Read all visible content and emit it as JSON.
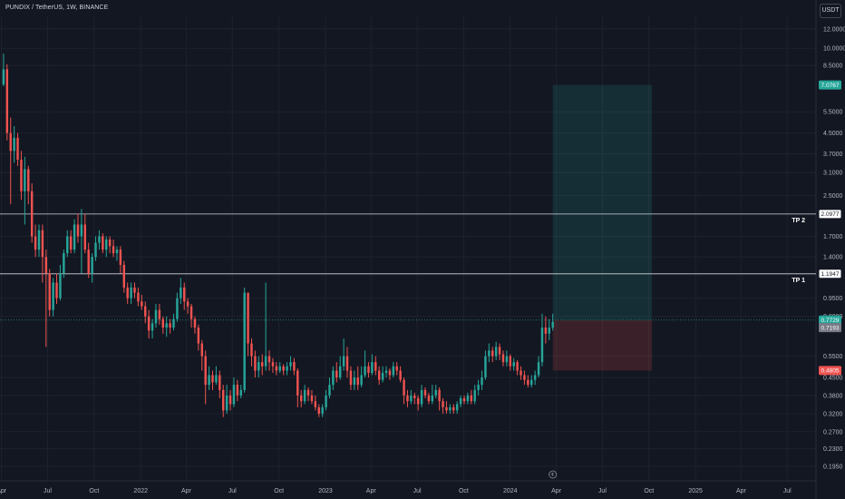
{
  "header": {
    "symbol_line": "PUNDIX / TetherUS, 1W, BINANCE",
    "currency": "USDT"
  },
  "chart_data": {
    "type": "candlestick",
    "y_scale": "log",
    "ylim": [
      0.17,
      13.5
    ],
    "y_ticks": [
      "12.0000",
      "10.0000",
      "8.5000",
      "7.0767",
      "5.5000",
      "4.5000",
      "3.7000",
      "3.1000",
      "2.5000",
      "2.0977",
      "1.7000",
      "1.4000",
      "1.1947",
      "0.9500",
      "0.8000",
      "0.7729",
      "0.7193",
      "0.5500",
      "0.4805",
      "0.4500",
      "0.3800",
      "0.3200",
      "0.2700",
      "0.2300",
      "0.1950"
    ],
    "x_ticks": [
      "Apr",
      "Jul",
      "Oct",
      "2022",
      "Apr",
      "Jul",
      "Oct",
      "2023",
      "Apr",
      "Jul",
      "Oct",
      "2024",
      "Apr",
      "Jul",
      "Oct",
      "2025",
      "Apr",
      "Jul"
    ],
    "x_range": [
      "2021-03-29",
      "2025-08-18"
    ],
    "price_tags": [
      {
        "label": "7.0767",
        "value": 7.0767,
        "color": "#26a69a"
      },
      {
        "label": "2.0977",
        "value": 2.0977,
        "color": "#ffffff"
      },
      {
        "label": "1.1947",
        "value": 1.1947,
        "color": "#ffffff"
      },
      {
        "label": "0.7729",
        "value": 0.7729,
        "color": "#26a69a"
      },
      {
        "label": "0.7193",
        "value": 0.7193,
        "color": "#787b86"
      },
      {
        "label": "0.4805",
        "value": 0.4805,
        "color": "#ef5350"
      }
    ],
    "horizontal_lines": [
      {
        "label": "TP 2",
        "value": 2.0977
      },
      {
        "label": "TP 1",
        "value": 1.1947
      }
    ],
    "position_box": {
      "start": "2024-03-25",
      "end": "2024-10-07",
      "entry": 0.7729,
      "target": 7.0767,
      "stop": 0.4805
    },
    "candles": [
      [
        "2021-04-05",
        7.1,
        8.2,
        9.5,
        7.0
      ],
      [
        "2021-04-12",
        8.2,
        4.5,
        8.6,
        4.2
      ],
      [
        "2021-04-19",
        4.5,
        3.8,
        5.2,
        2.3
      ],
      [
        "2021-04-26",
        3.8,
        4.3,
        4.8,
        3.4
      ],
      [
        "2021-05-03",
        4.3,
        3.5,
        4.5,
        3.3
      ],
      [
        "2021-05-10",
        3.5,
        2.6,
        3.8,
        2.4
      ],
      [
        "2021-05-17",
        2.6,
        3.2,
        3.6,
        1.9
      ],
      [
        "2021-05-24",
        3.2,
        2.6,
        3.3,
        2.3
      ],
      [
        "2021-05-31",
        2.6,
        1.7,
        2.8,
        1.6
      ],
      [
        "2021-06-07",
        1.7,
        1.5,
        1.9,
        1.4
      ],
      [
        "2021-06-14",
        1.5,
        1.8,
        1.9,
        1.4
      ],
      [
        "2021-06-21",
        1.8,
        1.4,
        1.9,
        1.1
      ],
      [
        "2021-06-28",
        1.4,
        1.2,
        1.5,
        0.6
      ],
      [
        "2021-07-05",
        1.2,
        0.85,
        1.25,
        0.8
      ],
      [
        "2021-07-12",
        0.85,
        1.1,
        1.15,
        0.8
      ],
      [
        "2021-07-19",
        1.1,
        0.95,
        1.2,
        0.9
      ],
      [
        "2021-07-26",
        0.95,
        1.2,
        1.3,
        0.93
      ],
      [
        "2021-08-02",
        1.2,
        1.45,
        1.5,
        1.15
      ],
      [
        "2021-08-09",
        1.45,
        1.7,
        1.8,
        1.4
      ],
      [
        "2021-08-16",
        1.7,
        1.5,
        1.8,
        1.45
      ],
      [
        "2021-08-23",
        1.5,
        1.9,
        2.0,
        1.45
      ],
      [
        "2021-08-30",
        1.9,
        1.7,
        2.1,
        1.6
      ],
      [
        "2021-09-06",
        1.7,
        1.9,
        2.2,
        1.2
      ],
      [
        "2021-09-13",
        1.9,
        1.5,
        2.1,
        1.45
      ],
      [
        "2021-09-20",
        1.5,
        1.2,
        1.6,
        1.15
      ],
      [
        "2021-09-27",
        1.2,
        1.4,
        1.45,
        1.1
      ],
      [
        "2021-10-04",
        1.4,
        1.6,
        1.7,
        1.35
      ],
      [
        "2021-10-11",
        1.6,
        1.7,
        1.8,
        1.5
      ],
      [
        "2021-10-18",
        1.7,
        1.5,
        1.75,
        1.45
      ],
      [
        "2021-10-25",
        1.5,
        1.65,
        1.7,
        1.4
      ],
      [
        "2021-11-01",
        1.65,
        1.55,
        1.7,
        1.45
      ],
      [
        "2021-11-08",
        1.55,
        1.45,
        1.65,
        1.4
      ],
      [
        "2021-11-15",
        1.45,
        1.5,
        1.55,
        1.35
      ],
      [
        "2021-11-22",
        1.5,
        1.3,
        1.55,
        1.2
      ],
      [
        "2021-11-29",
        1.3,
        1.05,
        1.35,
        1.0
      ],
      [
        "2021-12-06",
        1.05,
        0.95,
        1.1,
        0.9
      ],
      [
        "2021-12-13",
        0.95,
        1.05,
        1.1,
        0.9
      ],
      [
        "2021-12-20",
        1.05,
        1.0,
        1.1,
        0.95
      ],
      [
        "2021-12-27",
        1.0,
        0.92,
        1.05,
        0.88
      ],
      [
        "2022-01-03",
        0.92,
        0.88,
        0.98,
        0.85
      ],
      [
        "2022-01-10",
        0.88,
        0.8,
        0.92,
        0.75
      ],
      [
        "2022-01-17",
        0.8,
        0.7,
        0.85,
        0.65
      ],
      [
        "2022-01-24",
        0.7,
        0.75,
        0.78,
        0.65
      ],
      [
        "2022-01-31",
        0.75,
        0.85,
        0.9,
        0.72
      ],
      [
        "2022-02-07",
        0.85,
        0.78,
        0.9,
        0.74
      ],
      [
        "2022-02-14",
        0.78,
        0.72,
        0.8,
        0.68
      ],
      [
        "2022-02-21",
        0.72,
        0.75,
        0.8,
        0.66
      ],
      [
        "2022-02-28",
        0.75,
        0.72,
        0.78,
        0.68
      ],
      [
        "2022-03-07",
        0.72,
        0.78,
        0.82,
        0.7
      ],
      [
        "2022-03-14",
        0.78,
        0.95,
        1.0,
        0.76
      ],
      [
        "2022-03-21",
        0.95,
        1.05,
        1.15,
        0.9
      ],
      [
        "2022-03-28",
        1.05,
        0.92,
        1.1,
        0.85
      ],
      [
        "2022-04-04",
        0.92,
        0.88,
        0.95,
        0.82
      ],
      [
        "2022-04-11",
        0.88,
        0.78,
        0.9,
        0.72
      ],
      [
        "2022-04-18",
        0.78,
        0.72,
        0.8,
        0.68
      ],
      [
        "2022-04-25",
        0.72,
        0.62,
        0.74,
        0.58
      ],
      [
        "2022-05-02",
        0.62,
        0.55,
        0.64,
        0.48
      ],
      [
        "2022-05-09",
        0.55,
        0.42,
        0.58,
        0.35
      ],
      [
        "2022-05-16",
        0.42,
        0.46,
        0.5,
        0.4
      ],
      [
        "2022-05-23",
        0.46,
        0.43,
        0.48,
        0.4
      ],
      [
        "2022-05-30",
        0.43,
        0.46,
        0.5,
        0.42
      ],
      [
        "2022-06-06",
        0.46,
        0.4,
        0.48,
        0.37
      ],
      [
        "2022-06-13",
        0.4,
        0.33,
        0.42,
        0.31
      ],
      [
        "2022-06-20",
        0.33,
        0.38,
        0.42,
        0.32
      ],
      [
        "2022-06-27",
        0.38,
        0.35,
        0.4,
        0.33
      ],
      [
        "2022-07-04",
        0.35,
        0.42,
        0.45,
        0.34
      ],
      [
        "2022-07-11",
        0.42,
        0.38,
        0.44,
        0.36
      ],
      [
        "2022-07-18",
        0.38,
        0.4,
        0.42,
        0.37
      ],
      [
        "2022-07-25",
        0.4,
        1.0,
        1.05,
        0.39
      ],
      [
        "2022-08-01",
        1.0,
        0.62,
        1.0,
        0.55
      ],
      [
        "2022-08-08",
        0.62,
        0.55,
        0.65,
        0.5
      ],
      [
        "2022-08-15",
        0.55,
        0.48,
        0.58,
        0.45
      ],
      [
        "2022-08-22",
        0.48,
        0.52,
        0.55,
        0.45
      ],
      [
        "2022-08-29",
        0.52,
        0.5,
        0.56,
        0.46
      ],
      [
        "2022-09-05",
        0.5,
        0.55,
        1.1,
        0.48
      ],
      [
        "2022-09-12",
        0.55,
        0.52,
        0.58,
        0.48
      ],
      [
        "2022-09-19",
        0.52,
        0.5,
        0.54,
        0.47
      ],
      [
        "2022-09-26",
        0.5,
        0.48,
        0.52,
        0.46
      ],
      [
        "2022-10-03",
        0.48,
        0.5,
        0.52,
        0.47
      ],
      [
        "2022-10-10",
        0.5,
        0.48,
        0.51,
        0.46
      ],
      [
        "2022-10-17",
        0.48,
        0.5,
        0.52,
        0.46
      ],
      [
        "2022-10-24",
        0.5,
        0.52,
        0.55,
        0.48
      ],
      [
        "2022-10-31",
        0.52,
        0.48,
        0.54,
        0.46
      ],
      [
        "2022-11-07",
        0.48,
        0.38,
        0.49,
        0.34
      ],
      [
        "2022-11-14",
        0.38,
        0.36,
        0.4,
        0.34
      ],
      [
        "2022-11-21",
        0.36,
        0.4,
        0.42,
        0.35
      ],
      [
        "2022-11-28",
        0.4,
        0.38,
        0.41,
        0.36
      ],
      [
        "2022-12-05",
        0.38,
        0.36,
        0.4,
        0.35
      ],
      [
        "2022-12-12",
        0.36,
        0.34,
        0.38,
        0.33
      ],
      [
        "2022-12-19",
        0.34,
        0.32,
        0.35,
        0.31
      ],
      [
        "2022-12-26",
        0.32,
        0.34,
        0.35,
        0.31
      ],
      [
        "2023-01-02",
        0.34,
        0.38,
        0.4,
        0.33
      ],
      [
        "2023-01-09",
        0.38,
        0.42,
        0.45,
        0.37
      ],
      [
        "2023-01-16",
        0.42,
        0.48,
        0.5,
        0.4
      ],
      [
        "2023-01-23",
        0.48,
        0.45,
        0.52,
        0.43
      ],
      [
        "2023-01-30",
        0.45,
        0.5,
        0.55,
        0.44
      ],
      [
        "2023-02-06",
        0.5,
        0.55,
        0.65,
        0.48
      ],
      [
        "2023-02-13",
        0.55,
        0.48,
        0.6,
        0.45
      ],
      [
        "2023-02-20",
        0.48,
        0.42,
        0.5,
        0.4
      ],
      [
        "2023-02-27",
        0.42,
        0.45,
        0.48,
        0.4
      ],
      [
        "2023-03-06",
        0.45,
        0.42,
        0.5,
        0.4
      ],
      [
        "2023-03-13",
        0.42,
        0.46,
        0.5,
        0.41
      ],
      [
        "2023-03-20",
        0.46,
        0.5,
        0.58,
        0.45
      ],
      [
        "2023-03-27",
        0.5,
        0.47,
        0.52,
        0.45
      ],
      [
        "2023-04-03",
        0.47,
        0.52,
        0.56,
        0.46
      ],
      [
        "2023-04-10",
        0.52,
        0.48,
        0.55,
        0.46
      ],
      [
        "2023-04-17",
        0.48,
        0.44,
        0.5,
        0.42
      ],
      [
        "2023-04-24",
        0.44,
        0.47,
        0.5,
        0.43
      ],
      [
        "2023-05-01",
        0.47,
        0.48,
        0.5,
        0.45
      ],
      [
        "2023-05-08",
        0.48,
        0.46,
        0.49,
        0.44
      ],
      [
        "2023-05-15",
        0.46,
        0.5,
        0.52,
        0.45
      ],
      [
        "2023-05-22",
        0.5,
        0.48,
        0.52,
        0.46
      ],
      [
        "2023-05-29",
        0.48,
        0.44,
        0.5,
        0.43
      ],
      [
        "2023-06-05",
        0.44,
        0.38,
        0.45,
        0.35
      ],
      [
        "2023-06-12",
        0.38,
        0.36,
        0.4,
        0.34
      ],
      [
        "2023-06-19",
        0.36,
        0.38,
        0.4,
        0.35
      ],
      [
        "2023-06-26",
        0.38,
        0.37,
        0.39,
        0.35
      ],
      [
        "2023-07-03",
        0.37,
        0.35,
        0.38,
        0.33
      ],
      [
        "2023-07-10",
        0.35,
        0.4,
        0.42,
        0.34
      ],
      [
        "2023-07-17",
        0.4,
        0.38,
        0.41,
        0.37
      ],
      [
        "2023-07-24",
        0.38,
        0.36,
        0.39,
        0.35
      ],
      [
        "2023-07-31",
        0.36,
        0.38,
        0.42,
        0.35
      ],
      [
        "2023-08-07",
        0.38,
        0.4,
        0.42,
        0.37
      ],
      [
        "2023-08-14",
        0.4,
        0.36,
        0.41,
        0.33
      ],
      [
        "2023-08-21",
        0.36,
        0.34,
        0.37,
        0.32
      ],
      [
        "2023-08-28",
        0.34,
        0.33,
        0.36,
        0.32
      ],
      [
        "2023-09-04",
        0.33,
        0.34,
        0.35,
        0.32
      ],
      [
        "2023-09-11",
        0.34,
        0.33,
        0.35,
        0.32
      ],
      [
        "2023-09-18",
        0.33,
        0.35,
        0.36,
        0.32
      ],
      [
        "2023-09-25",
        0.35,
        0.37,
        0.38,
        0.34
      ],
      [
        "2023-10-02",
        0.37,
        0.36,
        0.38,
        0.35
      ],
      [
        "2023-10-09",
        0.36,
        0.38,
        0.39,
        0.35
      ],
      [
        "2023-10-16",
        0.38,
        0.36,
        0.4,
        0.35
      ],
      [
        "2023-10-23",
        0.36,
        0.4,
        0.42,
        0.35
      ],
      [
        "2023-10-30",
        0.4,
        0.42,
        0.44,
        0.38
      ],
      [
        "2023-11-06",
        0.42,
        0.45,
        0.48,
        0.4
      ],
      [
        "2023-11-13",
        0.45,
        0.55,
        0.58,
        0.44
      ],
      [
        "2023-11-20",
        0.55,
        0.58,
        0.62,
        0.52
      ],
      [
        "2023-11-27",
        0.58,
        0.55,
        0.6,
        0.52
      ],
      [
        "2023-12-04",
        0.55,
        0.6,
        0.63,
        0.53
      ],
      [
        "2023-12-11",
        0.6,
        0.56,
        0.62,
        0.53
      ],
      [
        "2023-12-18",
        0.56,
        0.52,
        0.58,
        0.5
      ],
      [
        "2023-12-25",
        0.52,
        0.55,
        0.58,
        0.5
      ],
      [
        "2024-01-01",
        0.55,
        0.5,
        0.56,
        0.48
      ],
      [
        "2024-01-08",
        0.5,
        0.52,
        0.54,
        0.48
      ],
      [
        "2024-01-15",
        0.52,
        0.48,
        0.53,
        0.46
      ],
      [
        "2024-01-22",
        0.48,
        0.46,
        0.5,
        0.44
      ],
      [
        "2024-01-29",
        0.46,
        0.44,
        0.48,
        0.42
      ],
      [
        "2024-02-05",
        0.44,
        0.42,
        0.46,
        0.41
      ],
      [
        "2024-02-12",
        0.42,
        0.44,
        0.46,
        0.41
      ],
      [
        "2024-02-19",
        0.44,
        0.46,
        0.48,
        0.42
      ],
      [
        "2024-02-26",
        0.46,
        0.52,
        0.55,
        0.45
      ],
      [
        "2024-03-04",
        0.52,
        0.72,
        0.82,
        0.5
      ],
      [
        "2024-03-11",
        0.72,
        0.68,
        0.8,
        0.62
      ],
      [
        "2024-03-18",
        0.68,
        0.72,
        0.78,
        0.64
      ],
      [
        "2024-03-25",
        0.72,
        0.76,
        0.82,
        0.7
      ]
    ]
  }
}
